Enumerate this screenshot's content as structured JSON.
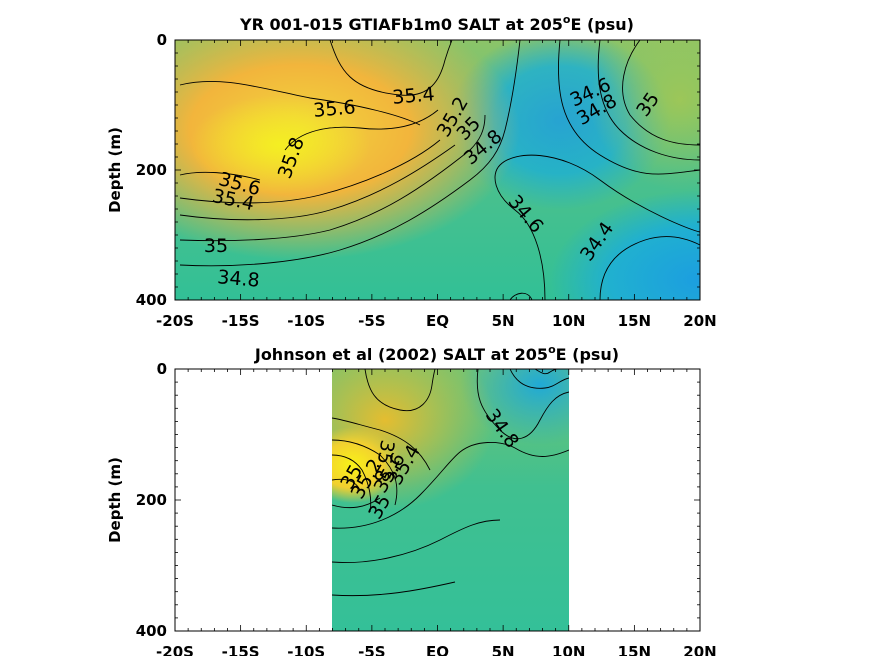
{
  "chart_data": [
    {
      "type": "heatmap",
      "title_main": "YR 001-015 GTIAFb1m0 SALT at 205",
      "title_sup": "o",
      "title_tail": "E (psu)",
      "ylabel": "Depth (m)",
      "xlim": [
        -20,
        20
      ],
      "ylim": [
        0,
        400
      ],
      "x_tick_labels": [
        "-20S",
        "-15S",
        "-10S",
        "-5S",
        "EQ",
        "5N",
        "10N",
        "15N",
        "20N"
      ],
      "y_tick_labels": [
        "0",
        "200",
        "400"
      ],
      "contour_labels": [
        "35.4",
        "35.6",
        "35.8",
        "35.6",
        "35.4",
        "35",
        "34.8",
        "35.2",
        "35",
        "34.8",
        "34.6",
        "34.8",
        "35",
        "34.6",
        "34.4"
      ],
      "data_extent_x": [
        -20,
        20
      ]
    },
    {
      "type": "heatmap",
      "title_main": "Johnson et al (2002) SALT at 205",
      "title_sup": "o",
      "title_tail": "E (psu)",
      "ylabel": "Depth (m)",
      "xlim": [
        -20,
        20
      ],
      "ylim": [
        0,
        400
      ],
      "x_tick_labels": [
        "-20S",
        "-15S",
        "-10S",
        "-5S",
        "EQ",
        "5N",
        "10N",
        "15N",
        "20N"
      ],
      "y_tick_labels": [
        "0",
        "200",
        "400"
      ],
      "contour_labels": [
        "34.8",
        "35",
        "35.2",
        "35.4",
        "35.6",
        "35.8",
        "35"
      ],
      "data_extent_x": [
        -8,
        10
      ]
    }
  ]
}
